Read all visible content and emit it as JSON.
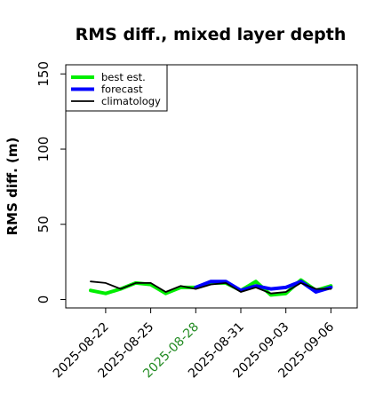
{
  "chart_data": {
    "type": "line",
    "title": "RMS diff., mixed layer depth",
    "ylabel": "RMS diff. (m)",
    "xlabel": "",
    "ylim": [
      -5,
      160
    ],
    "yticks": [
      0,
      50,
      100,
      150
    ],
    "x": [
      "2025-08-21",
      "2025-08-22",
      "2025-08-23",
      "2025-08-24",
      "2025-08-25",
      "2025-08-26",
      "2025-08-27",
      "2025-08-28",
      "2025-08-29",
      "2025-08-30",
      "2025-08-31",
      "2025-09-01",
      "2025-09-02",
      "2025-09-03",
      "2025-09-04",
      "2025-09-05",
      "2025-09-06"
    ],
    "xtick_labels": [
      "2025-08-22",
      "2025-08-25",
      "2025-08-28",
      "2025-08-31",
      "2025-09-03",
      "2025-09-06"
    ],
    "highlight_tick": "2025-08-28",
    "highlight_color": "#228B22",
    "grid": false,
    "legend_position": "top-left",
    "series": [
      {
        "name": "best est.",
        "color": "#00ee00",
        "width": "thick",
        "values": [
          6,
          4,
          7,
          11,
          10,
          4,
          8,
          8,
          11,
          11,
          6,
          12,
          3,
          4,
          13,
          6,
          9
        ]
      },
      {
        "name": "forecast",
        "color": "#0000ff",
        "width": "thick",
        "values": [
          null,
          null,
          null,
          null,
          null,
          null,
          null,
          8,
          12,
          12,
          6,
          9,
          7,
          8,
          12,
          5,
          8
        ]
      },
      {
        "name": "climatology",
        "color": "#000000",
        "width": "thin",
        "values": [
          12,
          11,
          7,
          11,
          11,
          5,
          9,
          7,
          10,
          11,
          5,
          8,
          4,
          5,
          11,
          7,
          7
        ]
      }
    ]
  }
}
